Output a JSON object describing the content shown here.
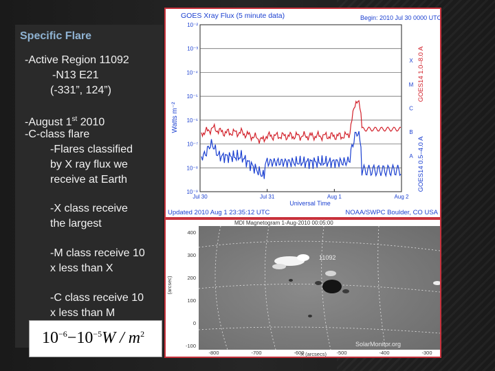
{
  "left": {
    "heading": "Specific Flare",
    "region": "-Active Region 11092",
    "coords1": "-N13 E21",
    "coords2": "(-331”, 124”)",
    "date_prefix": "-August 1",
    "date_sup": "st",
    "date_suffix": " 2010",
    "cclass": "-C-class flare",
    "classified": [
      "-Flares classified",
      "by X ray flux we",
      "receive at Earth"
    ],
    "xclass": [
      "-X class receive",
      "the largest"
    ],
    "mclass": [
      "-M class receive 10",
      "x less than X"
    ],
    "cclass_desc": [
      "-C class receive 10",
      "x less than M"
    ]
  },
  "formula": {
    "base1": "10",
    "exp1": "−6",
    "dash": "−",
    "base2": "10",
    "exp2": "−5",
    "unit": "W / m",
    "unit_exp": "2"
  },
  "goes": {
    "title": "GOES Xray Flux (5 minute data)",
    "begin": "Begin:  2010 Jul 30  0000 UTC",
    "ylabel": "Watts m⁻²",
    "xlabel": "Universal Time",
    "updated": "Updated 2010 Aug  1 23:35:12 UTC",
    "noaa": "NOAA/SWPC Boulder, CO USA",
    "right_label_a": "GOES14 1.0–8.0 A",
    "right_label_b": "GOES14 0.5–4.0 A",
    "y_ticks": [
      "10⁻²",
      "10⁻³",
      "10⁻⁴",
      "10⁻⁵",
      "10⁻⁶",
      "10⁻⁷",
      "10⁻⁸",
      "10⁻⁹"
    ],
    "class_letters": [
      "X",
      "M",
      "C",
      "B",
      "A"
    ],
    "x_ticks": [
      "Jul 30",
      "Jul 31",
      "Aug 1",
      "Aug 2"
    ],
    "colors": {
      "long_channel": "#d2202a",
      "short_channel": "#1a3fd0",
      "frame": "#c8313b"
    }
  },
  "mdi": {
    "title": "MDI Magnetogram 1-Aug-2010 00:05:00",
    "region_label": "11092",
    "y_ticks": [
      "400",
      "300",
      "200",
      "100",
      "0",
      "-100"
    ],
    "x_ticks": [
      "-800",
      "-700",
      "-600",
      "-500",
      "-400",
      "-300"
    ],
    "ylabel": "(arcsec)",
    "xlabel": "X (arcsecs)",
    "watermark": "SolarMonitor.org"
  }
}
